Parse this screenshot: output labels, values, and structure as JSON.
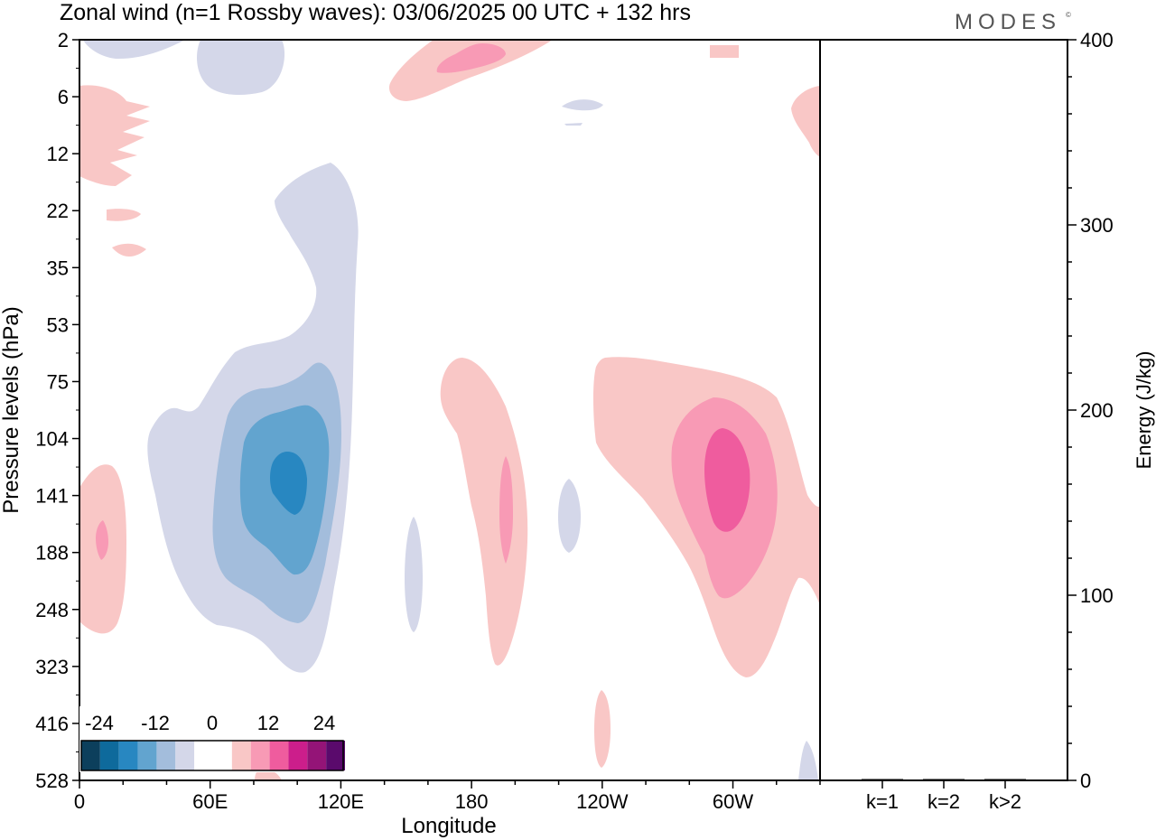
{
  "title": "Zonal wind (n=1 Rossby waves):  03/06/2025  00 UTC  + 132 hrs",
  "brand": "MODES",
  "brand_mark": "©",
  "chart_data": [
    {
      "type": "heatmap",
      "title": "Zonal wind (n=1 Rossby waves):  03/06/2025  00 UTC  + 132 hrs",
      "xlabel": "Longitude",
      "ylabel": "Pressure levels (hPa)",
      "x_ticks": [
        "0",
        "60E",
        "120E",
        "180",
        "120W",
        "60W"
      ],
      "x_tick_values": [
        0,
        60,
        120,
        180,
        240,
        300
      ],
      "xlim": [
        0,
        340
      ],
      "y_ticks": [
        "2",
        "6",
        "12",
        "22",
        "35",
        "53",
        "75",
        "104",
        "141",
        "188",
        "248",
        "323",
        "416",
        "528"
      ],
      "colorbar": {
        "tick_labels": [
          "-24",
          "-12",
          "0",
          "12",
          "24"
        ],
        "levels": [
          -24,
          -20,
          -16,
          -12,
          -8,
          -4,
          4,
          8,
          12,
          16,
          20,
          24
        ],
        "colors": [
          "#0c3f5c",
          "#0e6a9c",
          "#2887c1",
          "#62a4cf",
          "#a3bddc",
          "#d4d7e9",
          "#ffffff",
          "#f9c7c6",
          "#f89ab5",
          "#ef5c9e",
          "#cc1e8b",
          "#941477",
          "#5a0a6c"
        ]
      },
      "features": [
        {
          "sign": "negative",
          "peak_value": -20,
          "center_lon": 100,
          "center_level_hPa": 130
        },
        {
          "sign": "positive",
          "peak_value": 12,
          "center_lon": 10,
          "center_level_hPa": 175
        },
        {
          "sign": "positive",
          "peak_value": 12,
          "center_lon": 196,
          "center_level_hPa": 150
        },
        {
          "sign": "positive",
          "peak_value": 16,
          "center_lon": 297,
          "center_level_hPa": 140
        },
        {
          "sign": "positive",
          "peak_value": 12,
          "center_lon": 173,
          "center_level_hPa": 3
        }
      ]
    },
    {
      "type": "bar",
      "ylabel": "Energy (J/kg)",
      "categories": [
        "k=1",
        "k=2",
        "k>2"
      ],
      "values": [
        0.5,
        0.5,
        0.5
      ],
      "ylim": [
        0,
        400
      ],
      "y_ticks": [
        "0",
        "100",
        "200",
        "300",
        "400"
      ]
    }
  ]
}
